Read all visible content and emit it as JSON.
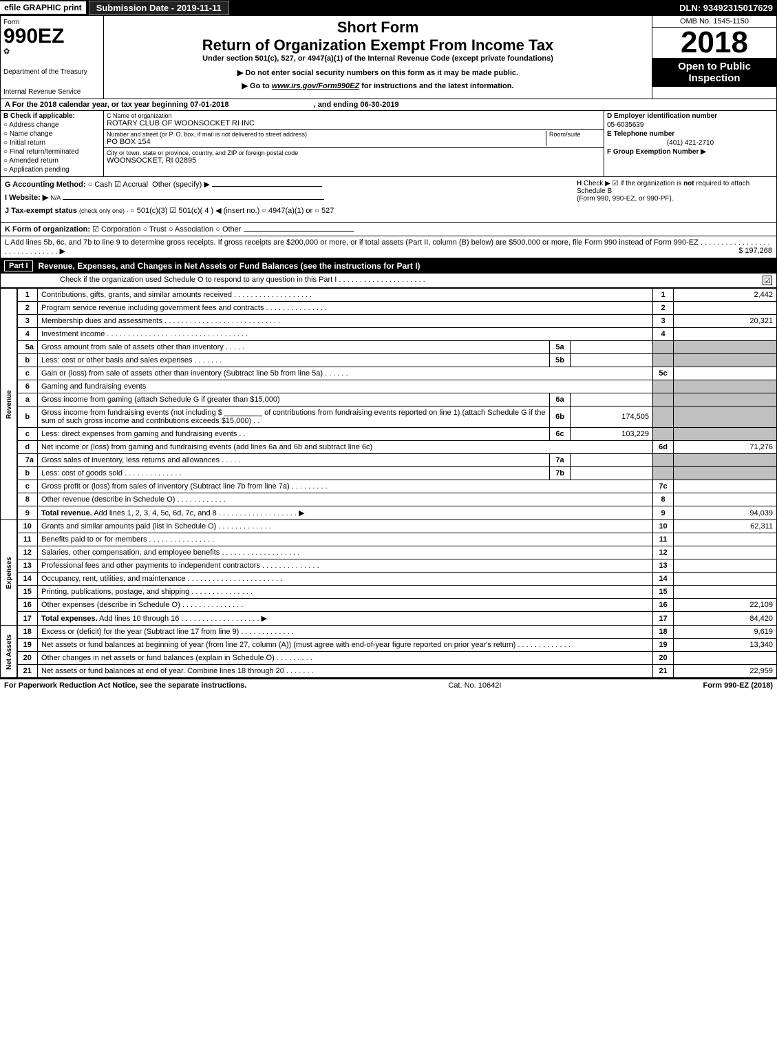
{
  "topbar": {
    "efile": "efile GRAPHIC print",
    "submission": "Submission Date - 2019-11-11",
    "dln": "DLN: 93492315017629"
  },
  "header": {
    "form_word": "Form",
    "form_number": "990EZ",
    "dept": "Department of the Treasury",
    "irs": "Internal Revenue Service",
    "short_form": "Short Form",
    "main_title": "Return of Organization Exempt From Income Tax",
    "under_section": "Under section 501(c), 527, or 4947(a)(1) of the Internal Revenue Code (except private foundations)",
    "do_not_enter": "▶ Do not enter social security numbers on this form as it may be made public.",
    "go_to_prefix": "▶ Go to ",
    "go_to_link": "www.irs.gov/Form990EZ",
    "go_to_suffix": " for instructions and the latest information.",
    "omb": "OMB No. 1545-1150",
    "year": "2018",
    "open_public": "Open to Public Inspection"
  },
  "period": {
    "text_a": "A For the 2018 calendar year, or tax year beginning 07-01-2018",
    "text_b": ", and ending 06-30-2019"
  },
  "box_b": {
    "lead": "B Check if applicable:",
    "opts": [
      "Address change",
      "Name change",
      "Initial return",
      "Final return/terminated",
      "Amended return",
      "Application pending"
    ]
  },
  "box_c": {
    "name_label": "C Name of organization",
    "name_val": "ROTARY CLUB OF WOONSOCKET RI INC",
    "street_label": "Number and street (or P. O. box, if mail is not delivered to street address)",
    "room_label": "Room/suite",
    "street_val": "PO BOX 154",
    "city_label": "City or town, state or province, country, and ZIP or foreign postal code",
    "city_val": "WOONSOCKET, RI  02895"
  },
  "box_d": {
    "ein_label": "D Employer identification number",
    "ein_val": "05-6035639",
    "tel_label": "E Telephone number",
    "tel_val": "(401) 421-2710",
    "group_label": "F Group Exemption Number  ▶"
  },
  "g_line": {
    "label": "G Accounting Method:",
    "cash": "Cash",
    "accrual": "Accrual",
    "other": "Other (specify) ▶"
  },
  "h_line": {
    "label": "H",
    "text1": "Check ▶ ☑ if the organization is ",
    "not": "not",
    "text2": " required to attach Schedule B",
    "text3": "(Form 990, 990-EZ, or 990-PF)."
  },
  "i_line": {
    "label": "I Website: ▶",
    "val": "N/A"
  },
  "j_line": {
    "label": "J Tax-exempt status",
    "small": " (check only one) - ",
    "o1": "501(c)(3)",
    "o2_pre": "501(c)( 4 ) ◀ (insert no.)",
    "o3": "4947(a)(1) or",
    "o4": "527"
  },
  "k_line": {
    "label": "K Form of organization:",
    "o1": "Corporation",
    "o2": "Trust",
    "o3": "Association",
    "o4": "Other"
  },
  "l_line": {
    "text": "L Add lines 5b, 6c, and 7b to line 9 to determine gross receipts. If gross receipts are $200,000 or more, or if total assets (Part II, column (B) below) are $500,000 or more, file Form 990 instead of Form 990-EZ  .  .  .  .  .  .  .  .  .  .  .  .  .  .  .  .  .  .  .  .  .  .  .  .  .  .  .  .  .  .  ▶",
    "amount": "$ 197,268"
  },
  "part1": {
    "tag": "Part I",
    "title": "Revenue, Expenses, and Changes in Net Assets or Fund Balances (see the instructions for Part I)",
    "check_line": "Check if the organization used Schedule O to respond to any question in this Part I  .  .  .  .  .  .  .  .  .  .  .  .  .  .  .  .  .  .  .  .  .",
    "check_mark": "☑"
  },
  "sections": {
    "revenue_label": "Revenue",
    "expenses_label": "Expenses",
    "netassets_label": "Net Assets"
  },
  "rows": [
    {
      "sec": "rev",
      "n": "1",
      "desc": "Contributions, gifts, grants, and similar amounts received  .  .  .  .  .  .  .  .  .  .  .  .  .  .  .  .  .  .  .",
      "r": "1",
      "v": "2,442"
    },
    {
      "sec": "rev",
      "n": "2",
      "desc": "Program service revenue including government fees and contracts  .  .  .  .  .  .  .  .  .  .  .  .  .  .  .",
      "r": "2",
      "v": ""
    },
    {
      "sec": "rev",
      "n": "3",
      "desc": "Membership dues and assessments  .  .  .  .  .  .  .  .  .  .  .  .  .  .  .  .  .  .  .  .  .  .  .  .  .  .  .  .",
      "r": "3",
      "v": "20,321"
    },
    {
      "sec": "rev",
      "n": "4",
      "desc": "Investment income  .  .  .  .  .  .  .  .  .  .  .  .  .  .  .  .  .  .  .  .  .  .  .  .  .  .  .  .  .  .  .  .  .  .",
      "r": "4",
      "v": ""
    },
    {
      "sec": "rev",
      "n": "5a",
      "desc": "Gross amount from sale of assets other than inventory  .  .  .  .  .",
      "mid_n": "5a",
      "mid_v": "",
      "shaded_right": true
    },
    {
      "sec": "rev",
      "n": "b",
      "desc": "Less: cost or other basis and sales expenses  .  .  .  .  .  .  .",
      "mid_n": "5b",
      "mid_v": "",
      "shaded_right": true
    },
    {
      "sec": "rev",
      "n": "c",
      "desc": "Gain or (loss) from sale of assets other than inventory (Subtract line 5b from line 5a)  .  .  .  .  .  .",
      "r": "5c",
      "v": ""
    },
    {
      "sec": "rev",
      "n": "6",
      "desc": "Gaming and fundraising events",
      "shaded_right": true,
      "no_r": true
    },
    {
      "sec": "rev",
      "n": "a",
      "desc": "Gross income from gaming (attach Schedule G if greater than $15,000)",
      "mid_n": "6a",
      "mid_v": "",
      "shaded_right": true
    },
    {
      "sec": "rev",
      "n": "b",
      "desc": "Gross income from fundraising events (not including $ _________ of contributions from fundraising events reported on line 1) (attach Schedule G if the sum of such gross income and contributions exceeds $15,000)   .  .",
      "mid_n": "6b",
      "mid_v": "174,505",
      "shaded_right": true
    },
    {
      "sec": "rev",
      "n": "c",
      "desc": "Less: direct expenses from gaming and fundraising events   .  .",
      "mid_n": "6c",
      "mid_v": "103,229",
      "shaded_right": true
    },
    {
      "sec": "rev",
      "n": "d",
      "desc": "Net income or (loss) from gaming and fundraising events (add lines 6a and 6b and subtract line 6c)",
      "r": "6d",
      "v": "71,276"
    },
    {
      "sec": "rev",
      "n": "7a",
      "desc": "Gross sales of inventory, less returns and allowances  .  .  .  .  .",
      "mid_n": "7a",
      "mid_v": "",
      "shaded_right": true
    },
    {
      "sec": "rev",
      "n": "b",
      "desc": "Less: cost of goods sold   .  .  .  .  .  .  .  .  .  .  .  .  .  .",
      "mid_n": "7b",
      "mid_v": "",
      "shaded_right": true
    },
    {
      "sec": "rev",
      "n": "c",
      "desc": "Gross profit or (loss) from sales of inventory (Subtract line 7b from line 7a)  .  .  .  .  .  .  .  .  .",
      "r": "7c",
      "v": ""
    },
    {
      "sec": "rev",
      "n": "8",
      "desc": "Other revenue (describe in Schedule O)   .  .  .  .  .  .  .  .  .  .  .  .",
      "r": "8",
      "v": ""
    },
    {
      "sec": "rev",
      "n": "9",
      "desc_bold": true,
      "desc": "Total revenue. Add lines 1, 2, 3, 4, 5c, 6d, 7c, and 8  .  .  .  .  .  .  .  .  .  .  .  .  .  .  .  .  .  .  .  ▶",
      "r": "9",
      "v": "94,039"
    },
    {
      "sec": "exp",
      "n": "10",
      "desc": "Grants and similar amounts paid (list in Schedule O)   .  .  .  .  .  .  .  .  .  .  .  .  .",
      "r": "10",
      "v": "62,311"
    },
    {
      "sec": "exp",
      "n": "11",
      "desc": "Benefits paid to or for members   .  .  .  .  .  .  .  .  .  .  .  .  .  .  .  .",
      "r": "11",
      "v": ""
    },
    {
      "sec": "exp",
      "n": "12",
      "desc": "Salaries, other compensation, and employee benefits  .  .  .  .  .  .  .  .  .  .  .  .  .  .  .  .  .  .  .",
      "r": "12",
      "v": ""
    },
    {
      "sec": "exp",
      "n": "13",
      "desc": "Professional fees and other payments to independent contractors  .  .  .  .  .  .  .  .  .  .  .  .  .  .",
      "r": "13",
      "v": ""
    },
    {
      "sec": "exp",
      "n": "14",
      "desc": "Occupancy, rent, utilities, and maintenance  .  .  .  .  .  .  .  .  .  .  .  .  .  .  .  .  .  .  .  .  .  .  .",
      "r": "14",
      "v": ""
    },
    {
      "sec": "exp",
      "n": "15",
      "desc": "Printing, publications, postage, and shipping   .  .  .  .  .  .  .  .  .  .  .  .  .  .  .",
      "r": "15",
      "v": ""
    },
    {
      "sec": "exp",
      "n": "16",
      "desc": "Other expenses (describe in Schedule O)   .  .  .  .  .  .  .  .  .  .  .  .  .  .  .",
      "r": "16",
      "v": "22,109"
    },
    {
      "sec": "exp",
      "n": "17",
      "desc_bold": true,
      "desc": "Total expenses. Add lines 10 through 16  .  .  .  .  .  .  .  .  .  .  .  .  .  .  .  .  .  .  .  ▶",
      "r": "17",
      "v": "84,420"
    },
    {
      "sec": "net",
      "n": "18",
      "desc": "Excess or (deficit) for the year (Subtract line 17 from line 9)   .  .  .  .  .  .  .  .  .  .  .  .  .",
      "r": "18",
      "v": "9,619"
    },
    {
      "sec": "net",
      "n": "19",
      "desc": "Net assets or fund balances at beginning of year (from line 27, column (A)) (must agree with end-of-year figure reported on prior year's return)   .  .  .  .  .  .  .  .  .  .  .  .  .",
      "r": "19",
      "v": "13,340"
    },
    {
      "sec": "net",
      "n": "20",
      "desc": "Other changes in net assets or fund balances (explain in Schedule O)   .  .  .  .  .  .  .  .  .",
      "r": "20",
      "v": ""
    },
    {
      "sec": "net",
      "n": "21",
      "desc": "Net assets or fund balances at end of year. Combine lines 18 through 20   .  .  .  .  .  .  .",
      "r": "21",
      "v": "22,959"
    }
  ],
  "footer": {
    "left": "For Paperwork Reduction Act Notice, see the separate instructions.",
    "mid": "Cat. No. 10642I",
    "right": "Form 990-EZ (2018)"
  }
}
